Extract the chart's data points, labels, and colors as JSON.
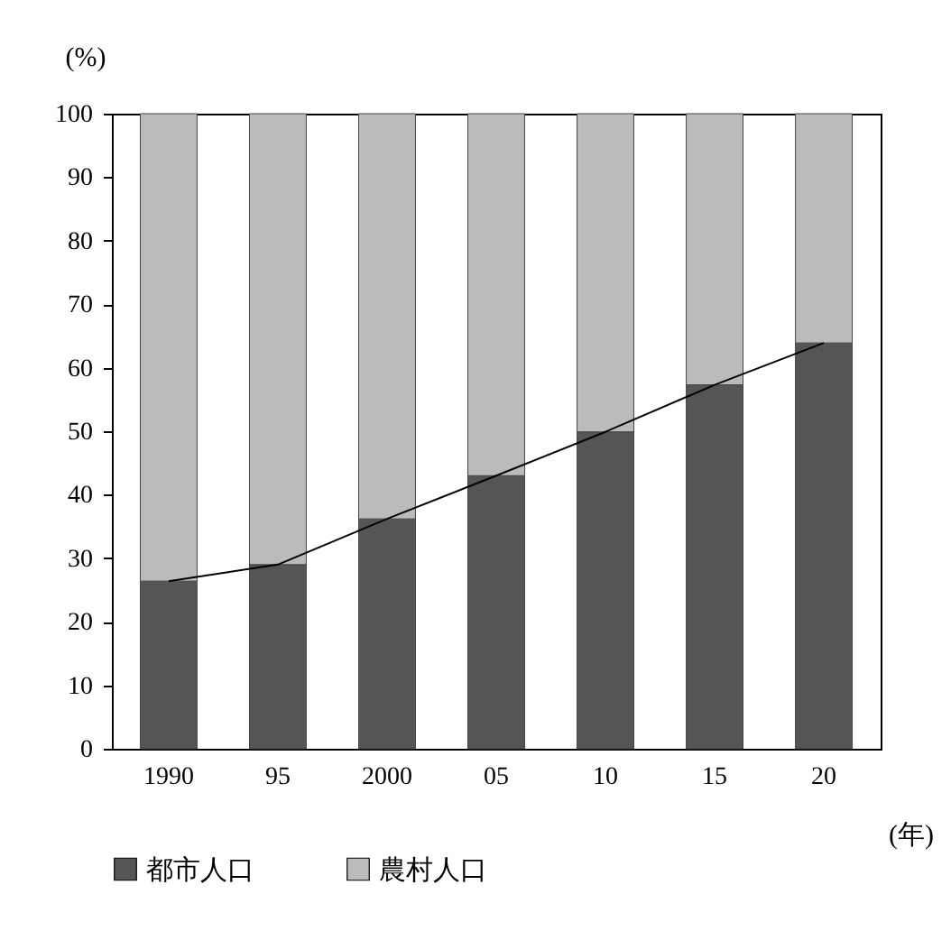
{
  "chart_data": {
    "type": "bar",
    "stacked": true,
    "categories": [
      "1990",
      "95",
      "2000",
      "05",
      "10",
      "15",
      "20"
    ],
    "series": [
      {
        "name": "都市人口",
        "color": "#555555",
        "values": [
          26.4,
          29.0,
          36.2,
          43.0,
          49.9,
          57.3,
          63.9
        ]
      },
      {
        "name": "農村人口",
        "color": "#bbbbbb",
        "values": [
          73.6,
          71.0,
          63.8,
          57.0,
          50.1,
          42.7,
          36.1
        ]
      },
      {
        "type": "line",
        "color": "#000000",
        "values": [
          26.4,
          29.0,
          36.2,
          43.0,
          49.9,
          57.3,
          63.9
        ]
      }
    ],
    "ylim": [
      0,
      100
    ],
    "yticks": [
      0,
      10,
      20,
      30,
      40,
      50,
      60,
      70,
      80,
      90,
      100
    ],
    "ylabel": "(%)",
    "xlabel": "(年)",
    "legend": "bottom",
    "grid": false
  }
}
